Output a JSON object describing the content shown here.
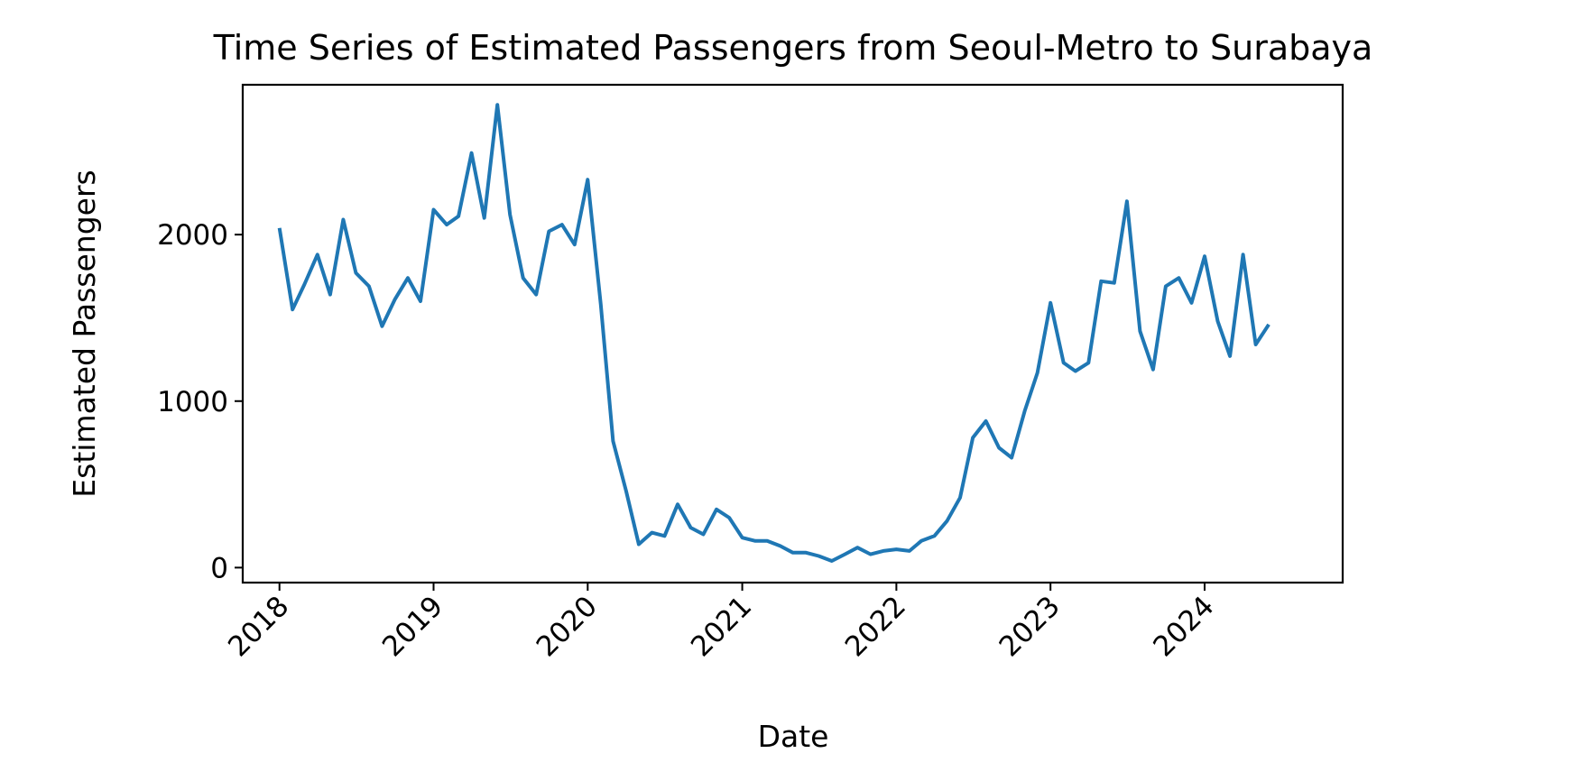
{
  "chart_data": {
    "type": "line",
    "title": "Time Series of Estimated Passengers from Seoul-Metro to Surabaya",
    "xlabel": "Date",
    "ylabel": "Estimated Passengers",
    "x_ticks": [
      "2018",
      "2019",
      "2020",
      "2021",
      "2022",
      "2023",
      "2024"
    ],
    "y_ticks": [
      0,
      1000,
      2000
    ],
    "xlim": [
      "2017-10-06",
      "2024-11-23"
    ],
    "ylim": [
      -90,
      2900
    ],
    "grid": false,
    "color": "#1f77b4",
    "series": [
      {
        "x": [
          "2018-01",
          "2018-02",
          "2018-03",
          "2018-04",
          "2018-05",
          "2018-06",
          "2018-07",
          "2018-08",
          "2018-09",
          "2018-10",
          "2018-11",
          "2018-12",
          "2019-01",
          "2019-02",
          "2019-03",
          "2019-04",
          "2019-05",
          "2019-06",
          "2019-07",
          "2019-08",
          "2019-09",
          "2019-10",
          "2019-11",
          "2019-12",
          "2020-01",
          "2020-02",
          "2020-03",
          "2020-04",
          "2020-05",
          "2020-06",
          "2020-07",
          "2020-08",
          "2020-09",
          "2020-10",
          "2020-11",
          "2020-12",
          "2021-01",
          "2021-02",
          "2021-03",
          "2021-04",
          "2021-05",
          "2021-06",
          "2021-07",
          "2021-08",
          "2021-09",
          "2021-10",
          "2021-11",
          "2021-12",
          "2022-01",
          "2022-02",
          "2022-03",
          "2022-04",
          "2022-05",
          "2022-06",
          "2022-07",
          "2022-08",
          "2022-09",
          "2022-10",
          "2022-11",
          "2022-12",
          "2023-01",
          "2023-02",
          "2023-03",
          "2023-04",
          "2023-05",
          "2023-06",
          "2023-07",
          "2023-08",
          "2023-09",
          "2023-10",
          "2023-11",
          "2023-12",
          "2024-01",
          "2024-02",
          "2024-03",
          "2024-04",
          "2024-05",
          "2024-06"
        ],
        "values": [
          2040,
          1550,
          1700,
          1880,
          1640,
          2090,
          1770,
          1690,
          1450,
          1610,
          1740,
          1600,
          2150,
          2060,
          2110,
          2490,
          2100,
          2780,
          2120,
          1740,
          1640,
          2020,
          2060,
          1940,
          2330,
          1580,
          760,
          460,
          140,
          210,
          190,
          380,
          240,
          200,
          350,
          300,
          180,
          160,
          160,
          130,
          90,
          90,
          70,
          40,
          80,
          120,
          80,
          100,
          110,
          100,
          160,
          190,
          280,
          420,
          780,
          880,
          720,
          660,
          940,
          1170,
          1590,
          1230,
          1180,
          1230,
          1720,
          1710,
          2200,
          1420,
          1190,
          1690,
          1740,
          1590,
          1870,
          1480,
          1270,
          1880,
          1340,
          1460
        ]
      }
    ]
  }
}
